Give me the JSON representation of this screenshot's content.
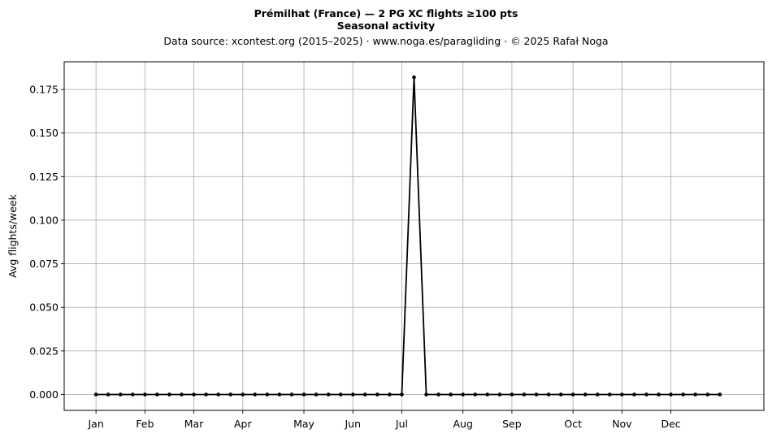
{
  "chart_data": {
    "type": "line",
    "title": "Prémilhat (France)  —  2 PG XC flights ≥100 pts",
    "subtitle": "Seasonal activity",
    "source_line": "Data source: xcontest.org (2015–2025)  ·  www.noga.es/paragliding  ·  © 2025 Rafał Noga",
    "xlabel": "",
    "ylabel": "Avg flights/week",
    "xlim": [
      -2.6,
      54.6
    ],
    "ylim": [
      -0.0091,
      0.1909
    ],
    "grid": true,
    "line_color": "#000000",
    "grid_color": "#b0b0b0",
    "x_ticks": [
      {
        "label": "Jan",
        "week": 0
      },
      {
        "label": "Feb",
        "week": 4
      },
      {
        "label": "Mar",
        "week": 8
      },
      {
        "label": "Apr",
        "week": 12
      },
      {
        "label": "May",
        "week": 17
      },
      {
        "label": "Jun",
        "week": 21
      },
      {
        "label": "Jul",
        "week": 25
      },
      {
        "label": "Aug",
        "week": 30
      },
      {
        "label": "Sep",
        "week": 34
      },
      {
        "label": "Oct",
        "week": 39
      },
      {
        "label": "Nov",
        "week": 43
      },
      {
        "label": "Dec",
        "week": 47
      }
    ],
    "y_ticks": [
      0.0,
      0.025,
      0.05,
      0.075,
      0.1,
      0.125,
      0.15,
      0.175
    ],
    "y_tick_labels": [
      "0.000",
      "0.025",
      "0.050",
      "0.075",
      "0.100",
      "0.125",
      "0.150",
      "0.175"
    ],
    "series": [
      {
        "x": [
          0,
          1,
          2,
          3,
          4,
          5,
          6,
          7,
          8,
          9,
          10,
          11,
          12,
          13,
          14,
          15,
          16,
          17,
          18,
          19,
          20,
          21,
          22,
          23,
          24,
          25,
          26,
          27,
          28,
          29,
          30,
          31,
          32,
          33,
          34,
          35,
          36,
          37,
          38,
          39,
          40,
          41,
          42,
          43,
          44,
          45,
          46,
          47,
          48,
          49,
          50,
          51
        ],
        "values": [
          0,
          0,
          0,
          0,
          0,
          0,
          0,
          0,
          0,
          0,
          0,
          0,
          0,
          0,
          0,
          0,
          0,
          0,
          0,
          0,
          0,
          0,
          0,
          0,
          0,
          0,
          0.182,
          0,
          0,
          0,
          0,
          0,
          0,
          0,
          0,
          0,
          0,
          0,
          0,
          0,
          0,
          0,
          0,
          0,
          0,
          0,
          0,
          0,
          0,
          0,
          0,
          0
        ]
      }
    ]
  }
}
